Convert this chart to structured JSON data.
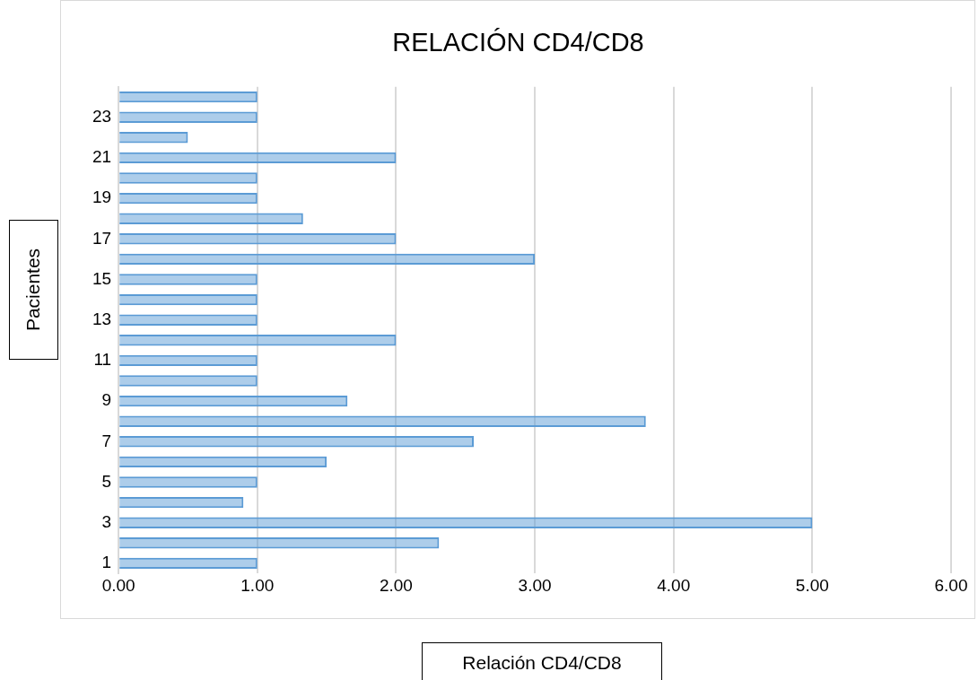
{
  "chart_data": {
    "type": "bar",
    "orientation": "horizontal",
    "title": "RELACIÓN CD4/CD8",
    "xlabel": "Relación CD4/CD8",
    "ylabel": "Pacientes",
    "categories": [
      null,
      "23",
      null,
      "21",
      null,
      "19",
      null,
      "17",
      null,
      "15",
      null,
      "13",
      null,
      "11",
      null,
      "9",
      null,
      "7",
      null,
      "5",
      null,
      "3",
      null,
      "1"
    ],
    "values": [
      1,
      1,
      0.5,
      2,
      1,
      1,
      1.33,
      2,
      3,
      1,
      1,
      1,
      2,
      1,
      1,
      1.65,
      3.8,
      2.56,
      1.5,
      1,
      0.9,
      5,
      2.31,
      1
    ],
    "color": "#5b9bd5",
    "xlim": [
      0,
      6
    ],
    "xticks": [
      {
        "value": 0,
        "label": "0.00"
      },
      {
        "value": 1,
        "label": "1.00"
      },
      {
        "value": 2,
        "label": "2.00"
      },
      {
        "value": 3,
        "label": "3.00"
      },
      {
        "value": 4,
        "label": "4.00"
      },
      {
        "value": 5,
        "label": "5.00"
      },
      {
        "value": 6,
        "label": "6.00"
      }
    ],
    "grid": "x",
    "legend": false
  }
}
